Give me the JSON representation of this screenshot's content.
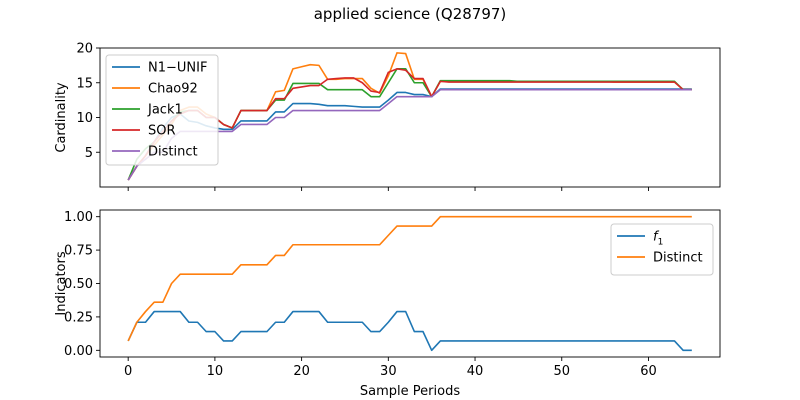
{
  "figure": {
    "title": "applied science (Q28797)"
  },
  "chart_data": [
    {
      "type": "line",
      "title": "",
      "xlabel": "",
      "ylabel": "Cardinality",
      "xlim": [
        -3.25,
        68.25
      ],
      "ylim": [
        0.0,
        20.0
      ],
      "xticks": [
        0,
        10,
        20,
        30,
        40,
        50,
        60
      ],
      "yticks": [
        5,
        10,
        15,
        20
      ],
      "show_xtick_labels": false,
      "grid": false,
      "legend": "upper-left",
      "series": [
        {
          "name": "N1−UNIF",
          "color": "#1f77b4",
          "x": [
            0,
            1,
            2,
            3,
            4,
            5,
            6,
            7,
            8,
            9,
            10,
            11,
            12,
            13,
            14,
            15,
            16,
            17,
            18,
            19,
            20,
            21,
            22,
            23,
            24,
            25,
            26,
            27,
            28,
            29,
            30,
            31,
            32,
            33,
            34,
            35,
            36,
            37,
            38,
            39,
            40,
            41,
            42,
            43,
            44,
            45,
            46,
            47,
            48,
            49,
            50,
            51,
            52,
            53,
            54,
            55,
            56,
            57,
            58,
            59,
            60,
            61,
            62,
            63,
            64,
            65
          ],
          "y": [
            1.0,
            3.0,
            4.5,
            6.5,
            8.5,
            10.0,
            10.5,
            9.5,
            9.3,
            8.8,
            8.5,
            8.3,
            8.3,
            9.5,
            9.5,
            9.5,
            9.5,
            10.8,
            10.8,
            12.0,
            12.0,
            12.0,
            11.9,
            11.7,
            11.7,
            11.7,
            11.6,
            11.5,
            11.5,
            11.5,
            12.5,
            13.6,
            13.6,
            13.3,
            13.3,
            13.0,
            14.1,
            14.1,
            14.1,
            14.1,
            14.1,
            14.1,
            14.1,
            14.1,
            14.1,
            14.1,
            14.1,
            14.1,
            14.1,
            14.1,
            14.1,
            14.1,
            14.1,
            14.1,
            14.1,
            14.1,
            14.1,
            14.1,
            14.1,
            14.1,
            14.1,
            14.1,
            14.1,
            14.1,
            14.1,
            14.1
          ]
        },
        {
          "name": "Chao92",
          "color": "#ff7f0e",
          "x": [
            0,
            1,
            2,
            3,
            4,
            5,
            6,
            7,
            8,
            9,
            10,
            11,
            12,
            13,
            14,
            15,
            16,
            17,
            18,
            19,
            20,
            21,
            22,
            23,
            24,
            25,
            26,
            27,
            28,
            29,
            30,
            31,
            32,
            33,
            34,
            35,
            36,
            37,
            38,
            39,
            40,
            41,
            42,
            43,
            44,
            45,
            46,
            47,
            48,
            49,
            50,
            51,
            52,
            53,
            54,
            55,
            56,
            57,
            58,
            59,
            60,
            61,
            62,
            63,
            64,
            65
          ],
          "y": [
            1.0,
            3.0,
            4.5,
            6.0,
            7.5,
            9.0,
            11.0,
            11.5,
            11.5,
            10.5,
            10.0,
            9.0,
            8.5,
            11.0,
            11.0,
            11.0,
            11.0,
            13.7,
            13.9,
            17.0,
            17.3,
            17.6,
            17.5,
            15.5,
            15.5,
            15.6,
            15.6,
            15.6,
            14.2,
            13.5,
            16.0,
            19.3,
            19.2,
            15.5,
            15.5,
            13.0,
            15.2,
            15.2,
            15.2,
            15.2,
            15.2,
            15.2,
            15.2,
            15.2,
            15.2,
            15.2,
            15.2,
            15.2,
            15.2,
            15.2,
            15.2,
            15.2,
            15.2,
            15.2,
            15.2,
            15.2,
            15.1,
            15.1,
            15.1,
            15.1,
            15.1,
            15.1,
            15.1,
            15.1,
            14.0,
            14.0
          ]
        },
        {
          "name": "Jack1",
          "color": "#2ca02c",
          "x": [
            0,
            1,
            2,
            3,
            4,
            5,
            6,
            7,
            8,
            9,
            10,
            11,
            12,
            13,
            14,
            15,
            16,
            17,
            18,
            19,
            20,
            21,
            22,
            23,
            24,
            25,
            26,
            27,
            28,
            29,
            30,
            31,
            32,
            33,
            34,
            35,
            36,
            37,
            38,
            39,
            40,
            41,
            42,
            43,
            44,
            45,
            46,
            47,
            48,
            49,
            50,
            51,
            52,
            53,
            54,
            55,
            56,
            57,
            58,
            59,
            60,
            61,
            62,
            63,
            64,
            65
          ],
          "y": [
            1.0,
            4.0,
            5.5,
            6.5,
            8.0,
            9.5,
            10.8,
            11.0,
            11.0,
            10.0,
            10.0,
            9.0,
            8.5,
            11.0,
            11.0,
            11.0,
            11.0,
            12.5,
            12.5,
            14.9,
            14.9,
            14.9,
            14.9,
            14.0,
            14.0,
            14.0,
            14.0,
            14.0,
            13.0,
            13.0,
            15.0,
            17.0,
            17.0,
            15.0,
            15.0,
            13.0,
            15.3,
            15.3,
            15.3,
            15.3,
            15.3,
            15.3,
            15.3,
            15.3,
            15.3,
            15.2,
            15.2,
            15.2,
            15.2,
            15.2,
            15.2,
            15.2,
            15.2,
            15.2,
            15.2,
            15.2,
            15.2,
            15.2,
            15.2,
            15.2,
            15.2,
            15.2,
            15.2,
            15.2,
            14.0,
            14.0
          ]
        },
        {
          "name": "SOR",
          "color": "#d62728",
          "x": [
            0,
            1,
            2,
            3,
            4,
            5,
            6,
            7,
            8,
            9,
            10,
            11,
            12,
            13,
            14,
            15,
            16,
            17,
            18,
            19,
            20,
            21,
            22,
            23,
            24,
            25,
            26,
            27,
            28,
            29,
            30,
            31,
            32,
            33,
            34,
            35,
            36,
            37,
            38,
            39,
            40,
            41,
            42,
            43,
            44,
            45,
            46,
            47,
            48,
            49,
            50,
            51,
            52,
            53,
            54,
            55,
            56,
            57,
            58,
            59,
            60,
            61,
            62,
            63,
            64,
            65
          ],
          "y": [
            1.0,
            3.0,
            4.5,
            6.5,
            8.0,
            9.5,
            10.5,
            11.0,
            11.0,
            10.0,
            10.0,
            9.0,
            8.5,
            11.0,
            11.0,
            11.0,
            11.0,
            12.7,
            12.7,
            14.2,
            14.4,
            14.6,
            14.6,
            15.5,
            15.6,
            15.7,
            15.7,
            15.0,
            13.8,
            13.6,
            16.5,
            17.0,
            16.8,
            15.6,
            15.6,
            13.0,
            15.2,
            15.1,
            15.1,
            15.1,
            15.1,
            15.1,
            15.1,
            15.1,
            15.1,
            15.1,
            15.1,
            15.1,
            15.1,
            15.1,
            15.1,
            15.1,
            15.1,
            15.1,
            15.1,
            15.1,
            15.1,
            15.1,
            15.1,
            15.1,
            15.1,
            15.1,
            15.1,
            15.1,
            14.0,
            14.0
          ]
        },
        {
          "name": "Distinct",
          "color": "#9467bd",
          "x": [
            0,
            1,
            2,
            3,
            4,
            5,
            6,
            7,
            8,
            9,
            10,
            11,
            12,
            13,
            14,
            15,
            16,
            17,
            18,
            19,
            20,
            21,
            22,
            23,
            24,
            25,
            26,
            27,
            28,
            29,
            30,
            31,
            32,
            33,
            34,
            35,
            36,
            37,
            38,
            39,
            40,
            41,
            42,
            43,
            44,
            45,
            46,
            47,
            48,
            49,
            50,
            51,
            52,
            53,
            54,
            55,
            56,
            57,
            58,
            59,
            60,
            61,
            62,
            63,
            64,
            65
          ],
          "y": [
            1,
            3,
            4,
            5,
            5,
            7,
            8,
            8,
            8,
            8,
            8,
            8,
            8,
            9,
            9,
            9,
            9,
            10,
            10,
            11,
            11,
            11,
            11,
            11,
            11,
            11,
            11,
            11,
            11,
            11,
            12,
            13,
            13,
            13,
            13,
            13,
            14,
            14,
            14,
            14,
            14,
            14,
            14,
            14,
            14,
            14,
            14,
            14,
            14,
            14,
            14,
            14,
            14,
            14,
            14,
            14,
            14,
            14,
            14,
            14,
            14,
            14,
            14,
            14,
            14,
            14
          ]
        }
      ]
    },
    {
      "type": "line",
      "title": "",
      "xlabel": "Sample Periods",
      "ylabel": "Indicators",
      "xlim": [
        -3.25,
        68.25
      ],
      "ylim": [
        -0.05,
        1.05
      ],
      "xticks": [
        0,
        10,
        20,
        30,
        40,
        50,
        60
      ],
      "yticks": [
        0.0,
        0.25,
        0.5,
        0.75,
        1.0
      ],
      "ytick_labels": [
        "0.00",
        "0.25",
        "0.50",
        "0.75",
        "1.00"
      ],
      "show_xtick_labels": true,
      "grid": false,
      "legend": "upper-right",
      "series": [
        {
          "name": "f1",
          "label_base": "f",
          "label_sub": "1",
          "color": "#1f77b4",
          "x": [
            0,
            1,
            2,
            3,
            4,
            5,
            6,
            7,
            8,
            9,
            10,
            11,
            12,
            13,
            14,
            15,
            16,
            17,
            18,
            19,
            20,
            21,
            22,
            23,
            24,
            25,
            26,
            27,
            28,
            29,
            30,
            31,
            32,
            33,
            34,
            35,
            36,
            37,
            38,
            39,
            40,
            41,
            42,
            43,
            44,
            45,
            46,
            47,
            48,
            49,
            50,
            51,
            52,
            53,
            54,
            55,
            56,
            57,
            58,
            59,
            60,
            61,
            62,
            63,
            64,
            65
          ],
          "y": [
            0.07,
            0.21,
            0.21,
            0.29,
            0.29,
            0.29,
            0.29,
            0.21,
            0.21,
            0.14,
            0.14,
            0.07,
            0.07,
            0.14,
            0.14,
            0.14,
            0.14,
            0.21,
            0.21,
            0.29,
            0.29,
            0.29,
            0.29,
            0.21,
            0.21,
            0.21,
            0.21,
            0.21,
            0.14,
            0.14,
            0.21,
            0.29,
            0.29,
            0.14,
            0.14,
            0.0,
            0.07,
            0.07,
            0.07,
            0.07,
            0.07,
            0.07,
            0.07,
            0.07,
            0.07,
            0.07,
            0.07,
            0.07,
            0.07,
            0.07,
            0.07,
            0.07,
            0.07,
            0.07,
            0.07,
            0.07,
            0.07,
            0.07,
            0.07,
            0.07,
            0.07,
            0.07,
            0.07,
            0.07,
            0.0,
            0.0
          ]
        },
        {
          "name": "Distinct",
          "color": "#ff7f0e",
          "x": [
            0,
            1,
            2,
            3,
            4,
            5,
            6,
            7,
            8,
            9,
            10,
            11,
            12,
            13,
            14,
            15,
            16,
            17,
            18,
            19,
            20,
            21,
            22,
            23,
            24,
            25,
            26,
            27,
            28,
            29,
            30,
            31,
            32,
            33,
            34,
            35,
            36,
            37,
            38,
            39,
            40,
            41,
            42,
            43,
            44,
            45,
            46,
            47,
            48,
            49,
            50,
            51,
            52,
            53,
            54,
            55,
            56,
            57,
            58,
            59,
            60,
            61,
            62,
            63,
            64,
            65
          ],
          "y": [
            0.07,
            0.21,
            0.29,
            0.36,
            0.36,
            0.5,
            0.57,
            0.57,
            0.57,
            0.57,
            0.57,
            0.57,
            0.57,
            0.64,
            0.64,
            0.64,
            0.64,
            0.71,
            0.71,
            0.79,
            0.79,
            0.79,
            0.79,
            0.79,
            0.79,
            0.79,
            0.79,
            0.79,
            0.79,
            0.79,
            0.86,
            0.93,
            0.93,
            0.93,
            0.93,
            0.93,
            1.0,
            1.0,
            1.0,
            1.0,
            1.0,
            1.0,
            1.0,
            1.0,
            1.0,
            1.0,
            1.0,
            1.0,
            1.0,
            1.0,
            1.0,
            1.0,
            1.0,
            1.0,
            1.0,
            1.0,
            1.0,
            1.0,
            1.0,
            1.0,
            1.0,
            1.0,
            1.0,
            1.0,
            1.0,
            1.0
          ]
        }
      ]
    }
  ]
}
